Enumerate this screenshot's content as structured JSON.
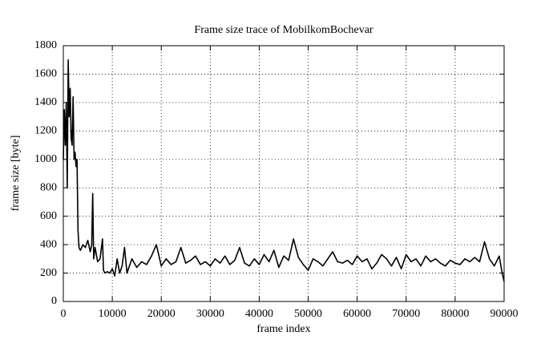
{
  "chart_data": {
    "type": "line",
    "title": "Frame size trace of MobilkomBochevar",
    "xlabel": "frame index",
    "ylabel": "frame size [byte]",
    "x": [
      0,
      200,
      400,
      600,
      800,
      1000,
      1200,
      1400,
      1600,
      1800,
      2000,
      2200,
      2400,
      2600,
      2800,
      3000,
      3200,
      3500,
      4000,
      4500,
      5000,
      5500,
      5800,
      6000,
      6200,
      6500,
      7000,
      7500,
      8000,
      8200,
      8500,
      9000,
      9500,
      10000,
      10500,
      11000,
      11500,
      12000,
      12500,
      13000,
      14000,
      15000,
      16000,
      17000,
      18000,
      19000,
      20000,
      21000,
      22000,
      23000,
      24000,
      25000,
      26000,
      27000,
      28000,
      29000,
      30000,
      31000,
      32000,
      33000,
      34000,
      35000,
      36000,
      37000,
      38000,
      39000,
      40000,
      41000,
      42000,
      43000,
      44000,
      45000,
      46000,
      47000,
      48000,
      49000,
      50000,
      51000,
      52000,
      53000,
      54000,
      55000,
      56000,
      57000,
      58000,
      59000,
      60000,
      61000,
      62000,
      63000,
      64000,
      65000,
      66000,
      67000,
      68000,
      69000,
      70000,
      71000,
      72000,
      73000,
      74000,
      75000,
      76000,
      77000,
      78000,
      79000,
      80000,
      81000,
      82000,
      83000,
      84000,
      85000,
      86000,
      87000,
      88000,
      89000,
      89500,
      90000
    ],
    "values": [
      1000,
      1350,
      1100,
      1400,
      800,
      1700,
      1300,
      1500,
      1150,
      1100,
      1440,
      1000,
      1050,
      950,
      1000,
      500,
      380,
      360,
      400,
      380,
      430,
      350,
      400,
      760,
      300,
      380,
      280,
      300,
      440,
      220,
      200,
      210,
      200,
      230,
      180,
      300,
      200,
      250,
      380,
      200,
      300,
      240,
      280,
      260,
      320,
      400,
      250,
      300,
      260,
      280,
      380,
      270,
      290,
      320,
      260,
      280,
      250,
      300,
      270,
      320,
      260,
      290,
      380,
      270,
      250,
      300,
      260,
      330,
      280,
      360,
      240,
      320,
      290,
      440,
      310,
      260,
      220,
      300,
      280,
      250,
      300,
      350,
      280,
      270,
      290,
      260,
      320,
      280,
      300,
      230,
      270,
      330,
      300,
      250,
      310,
      230,
      330,
      280,
      300,
      250,
      320,
      280,
      300,
      270,
      250,
      290,
      270,
      260,
      300,
      280,
      310,
      280,
      420,
      300,
      250,
      320,
      220,
      140
    ],
    "color": "#000000",
    "xlim": [
      0,
      90000
    ],
    "xticks": [
      0,
      10000,
      20000,
      30000,
      40000,
      50000,
      60000,
      70000,
      80000,
      90000
    ],
    "ylim": [
      0,
      1800
    ],
    "yticks": [
      0,
      200,
      400,
      600,
      800,
      1000,
      1200,
      1400,
      1600,
      1800
    ],
    "grid": true
  }
}
